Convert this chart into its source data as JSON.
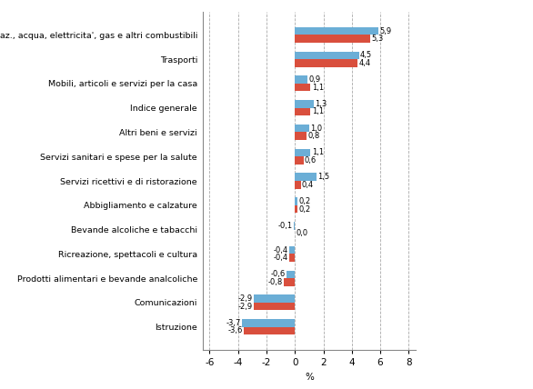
{
  "categories": [
    "Abitaz., acqua, elettricita', gas e altri combustibili",
    "Trasporti",
    "Mobili, articoli e servizi per la casa",
    "Indice generale",
    "Altri beni e servizi",
    "Servizi sanitari e spese per la salute",
    "Servizi ricettivi e di ristorazione",
    "Abbigliamento e calzature",
    "Bevande alcoliche e tabacchi",
    "Ricreazione, spettacoli e cultura",
    "Prodotti alimentari e bevande analcoliche",
    "Comunicazioni",
    "Istruzione"
  ],
  "toscana": [
    5.3,
    4.4,
    1.1,
    1.1,
    0.8,
    0.6,
    0.4,
    0.2,
    0.0,
    -0.4,
    -0.8,
    -2.9,
    -3.6
  ],
  "italia": [
    5.9,
    4.5,
    0.9,
    1.3,
    1.0,
    1.1,
    1.5,
    0.2,
    -0.1,
    -0.4,
    -0.6,
    -2.9,
    -3.7
  ],
  "toscana_labels": [
    "5,3",
    "4,4",
    "1,1",
    "1,1",
    "0,8",
    "0,6",
    "0,4",
    "0,2",
    "0,0",
    "-0,4",
    "-0,8",
    "-2,9",
    "-3,6"
  ],
  "italia_labels": [
    "5,9",
    "4,5",
    "0,9",
    "1,3",
    "1,0",
    "1,1",
    "1,5",
    "0,2",
    "-0,1",
    "-0,4",
    "-0,6",
    "-2,9",
    "-3,7"
  ],
  "color_toscana": "#D94F3D",
  "color_italia": "#6BAED6",
  "xlabel": "%",
  "xlim": [
    -6.5,
    8.5
  ],
  "xticks": [
    -6,
    -4,
    -2,
    0,
    2,
    4,
    6,
    8
  ],
  "xtick_labels": [
    "-6",
    "-4",
    "-2",
    "0",
    "2",
    "4",
    "6",
    "8"
  ],
  "bar_height": 0.32,
  "figsize": [
    5.86,
    4.28
  ],
  "dpi": 100,
  "grid_color": "#aaaaaa",
  "label_fontsize": 6.8,
  "value_fontsize": 6.0,
  "tick_fontsize": 7.5,
  "bg_color": "#ffffff"
}
